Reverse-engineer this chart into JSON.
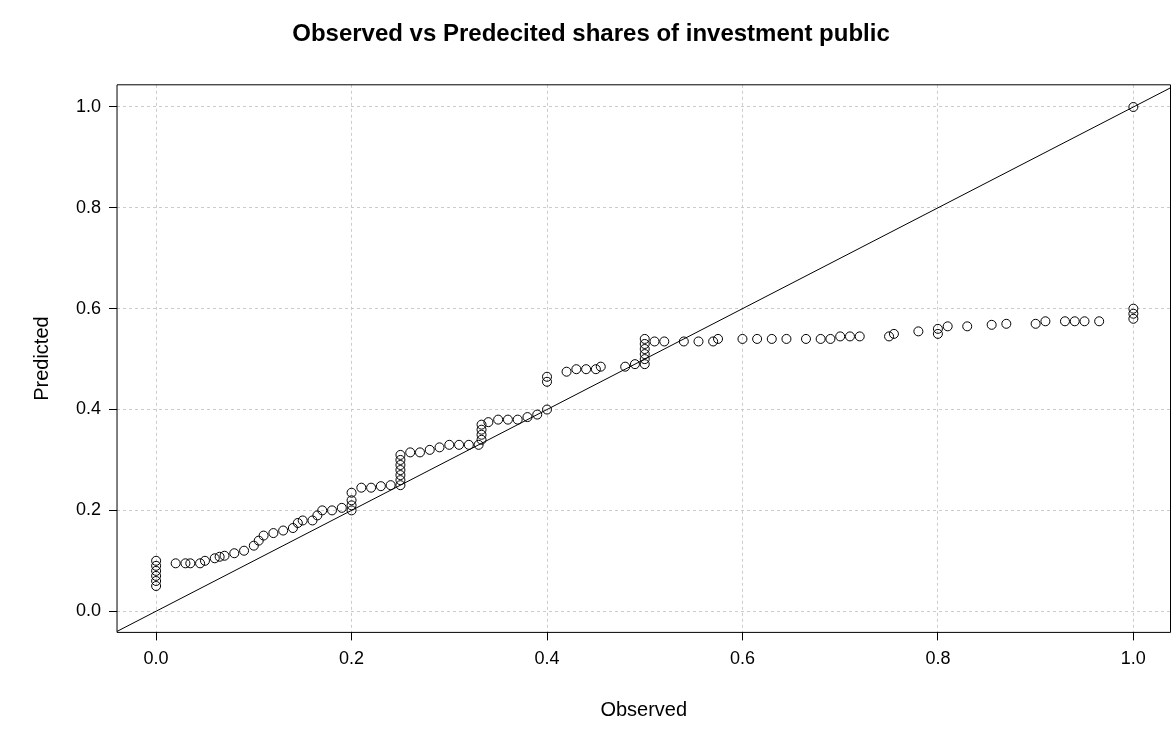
{
  "chart_data": {
    "type": "scatter",
    "title": "Observed vs Predecited shares of investment public",
    "xlabel": "Observed",
    "ylabel": "Predicted",
    "xlim": [
      -0.04,
      1.038
    ],
    "ylim": [
      -0.042,
      1.044
    ],
    "xticks": [
      {
        "value": 0,
        "label": "0.0"
      },
      {
        "value": 0.2,
        "label": "0.2"
      },
      {
        "value": 0.4,
        "label": "0.4"
      },
      {
        "value": 0.6,
        "label": "0.6"
      },
      {
        "value": 0.8,
        "label": "0.8"
      },
      {
        "value": 1,
        "label": "1.0"
      }
    ],
    "yticks": [
      {
        "value": 0,
        "label": "0.0"
      },
      {
        "value": 0.2,
        "label": "0.2"
      },
      {
        "value": 0.4,
        "label": "0.4"
      },
      {
        "value": 0.6,
        "label": "0.6"
      },
      {
        "value": 0.8,
        "label": "0.8"
      },
      {
        "value": 1,
        "label": "1.0"
      }
    ],
    "grid": true,
    "legend": false,
    "marker": "circle",
    "series": [
      {
        "color": "#000000",
        "x": [
          0,
          0,
          0,
          0,
          0,
          0,
          0.02,
          0.03,
          0.035,
          0.045,
          0.05,
          0.06,
          0.065,
          0.07,
          0.08,
          0.09,
          0.1,
          0.105,
          0.11,
          0.12,
          0.13,
          0.14,
          0.145,
          0.15,
          0.16,
          0.165,
          0.17,
          0.18,
          0.19,
          0.2,
          0.2,
          0.2,
          0.2,
          0.21,
          0.22,
          0.23,
          0.24,
          0.25,
          0.25,
          0.25,
          0.25,
          0.25,
          0.25,
          0.25,
          0.26,
          0.27,
          0.28,
          0.29,
          0.3,
          0.31,
          0.32,
          0.33,
          0.333,
          0.333,
          0.333,
          0.333,
          0.34,
          0.35,
          0.36,
          0.37,
          0.38,
          0.39,
          0.4,
          0.4,
          0.4,
          0.42,
          0.43,
          0.44,
          0.45,
          0.455,
          0.48,
          0.49,
          0.5,
          0.5,
          0.5,
          0.5,
          0.5,
          0.5,
          0.51,
          0.52,
          0.54,
          0.555,
          0.57,
          0.575,
          0.6,
          0.615,
          0.63,
          0.645,
          0.665,
          0.68,
          0.69,
          0.7,
          0.71,
          0.72,
          0.75,
          0.755,
          0.78,
          0.8,
          0.8,
          0.81,
          0.83,
          0.855,
          0.87,
          0.9,
          0.91,
          0.93,
          0.94,
          0.95,
          0.965,
          1,
          1,
          1,
          1
        ],
        "values": [
          0.05,
          0.06,
          0.07,
          0.08,
          0.09,
          0.1,
          0.095,
          0.095,
          0.095,
          0.095,
          0.1,
          0.105,
          0.108,
          0.11,
          0.115,
          0.12,
          0.13,
          0.14,
          0.15,
          0.155,
          0.16,
          0.165,
          0.175,
          0.18,
          0.18,
          0.19,
          0.2,
          0.2,
          0.205,
          0.2,
          0.21,
          0.22,
          0.235,
          0.245,
          0.245,
          0.248,
          0.25,
          0.25,
          0.26,
          0.27,
          0.28,
          0.29,
          0.3,
          0.31,
          0.315,
          0.315,
          0.32,
          0.325,
          0.33,
          0.33,
          0.33,
          0.33,
          0.34,
          0.35,
          0.36,
          0.37,
          0.375,
          0.38,
          0.38,
          0.38,
          0.385,
          0.39,
          0.4,
          0.455,
          0.465,
          0.475,
          0.48,
          0.48,
          0.48,
          0.485,
          0.485,
          0.49,
          0.49,
          0.5,
          0.51,
          0.52,
          0.53,
          0.54,
          0.535,
          0.535,
          0.535,
          0.535,
          0.535,
          0.54,
          0.54,
          0.54,
          0.54,
          0.54,
          0.54,
          0.54,
          0.54,
          0.545,
          0.545,
          0.545,
          0.545,
          0.55,
          0.555,
          0.55,
          0.56,
          0.565,
          0.565,
          0.568,
          0.57,
          0.57,
          0.575,
          0.575,
          0.575,
          0.575,
          0.575,
          0.58,
          0.59,
          0.6,
          1
        ]
      },
      {
        "type": "line",
        "marker": "none",
        "color": "#000000",
        "x": [
          -0.04,
          1.038
        ],
        "values": [
          -0.04,
          1.038
        ]
      }
    ]
  }
}
